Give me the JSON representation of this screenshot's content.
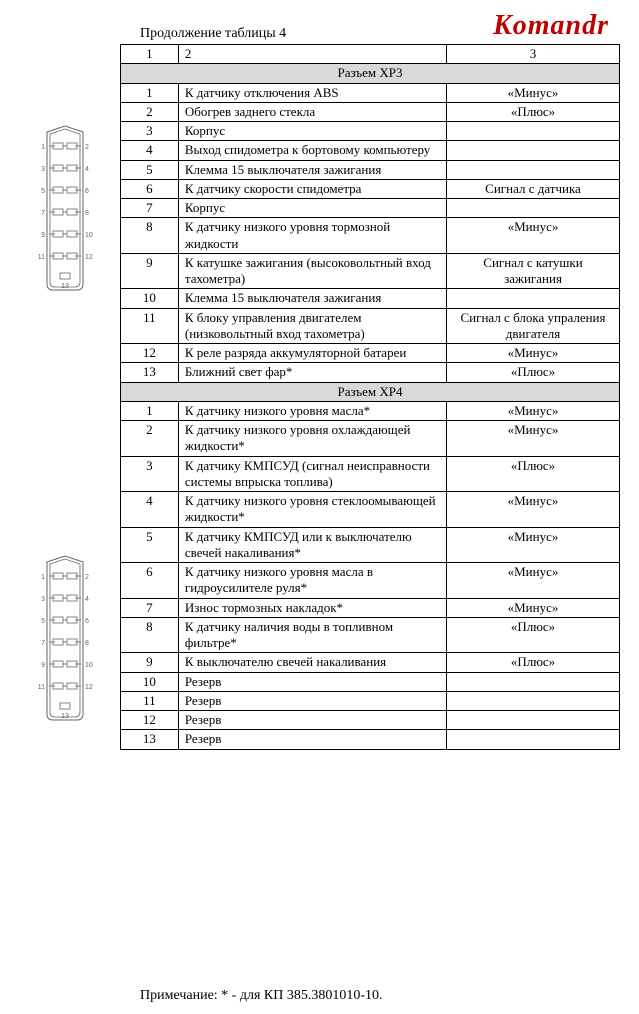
{
  "title": "Продолжение таблицы 4",
  "brand": "Komandr",
  "note": "Примечание: * - для КП 385.3801010-10.",
  "headers": {
    "c1": "1",
    "c2": "2",
    "c3": "3"
  },
  "sections": [
    {
      "label": "Разъем XP3",
      "rows": [
        {
          "n": "1",
          "desc": "К датчику отключения ABS",
          "sig": "«Минус»"
        },
        {
          "n": "2",
          "desc": "Обогрев заднего стекла",
          "sig": "«Плюс»"
        },
        {
          "n": "3",
          "desc": "Корпус",
          "sig": ""
        },
        {
          "n": "4",
          "desc": "Выход спидометра к бортовому компьютеру",
          "sig": ""
        },
        {
          "n": "5",
          "desc": "Клемма 15 выключателя зажигания",
          "sig": ""
        },
        {
          "n": "6",
          "desc": "К датчику скорости спидометра",
          "sig": "Сигнал с датчика"
        },
        {
          "n": "7",
          "desc": "Корпус",
          "sig": ""
        },
        {
          "n": "8",
          "desc": "К датчику низкого уровня тормозной жидкости",
          "sig": "«Минус»"
        },
        {
          "n": "9",
          "desc": "К катушке зажигания (высоковольтный вход тахометра)",
          "sig": "Сигнал с катушки зажигания"
        },
        {
          "n": "10",
          "desc": "Клемма 15 выключателя зажигания",
          "sig": ""
        },
        {
          "n": "11",
          "desc": "К блоку управления двигателем (низковольтный вход тахометра)",
          "sig": "Сигнал с блока упраления двигателя"
        },
        {
          "n": "12",
          "desc": "К реле разряда аккумуляторной батареи",
          "sig": "«Минус»"
        },
        {
          "n": "13",
          "desc": "Ближний свет фар*",
          "sig": "«Плюс»"
        }
      ]
    },
    {
      "label": "Разъем XP4",
      "rows": [
        {
          "n": "1",
          "desc": "К датчику низкого уровня масла*",
          "sig": "«Минус»"
        },
        {
          "n": "2",
          "desc": "К датчику низкого уровня охлаждающей жидкости*",
          "sig": "«Минус»"
        },
        {
          "n": "3",
          "desc": "К датчику КМПСУД (сигнал неисправности системы впрыска топлива)",
          "sig": "«Плюс»"
        },
        {
          "n": "4",
          "desc": "К датчику низкого уровня стеклоомывающей жидкости*",
          "sig": "«Минус»"
        },
        {
          "n": "5",
          "desc": "К датчику КМПСУД или к выключателю свечей накаливания*",
          "sig": "«Минус»"
        },
        {
          "n": "6",
          "desc": "К датчику низкого уровня масла в гидроусилителе руля*",
          "sig": "«Минус»"
        },
        {
          "n": "7",
          "desc": "Износ тормозных накладок*",
          "sig": "«Минус»"
        },
        {
          "n": "8",
          "desc": "К датчику наличия воды в топливном фильтре*",
          "sig": "«Плюс»"
        },
        {
          "n": "9",
          "desc": "К выключателю свечей накаливания",
          "sig": "«Плюс»"
        },
        {
          "n": "10",
          "desc": "Резерв",
          "sig": ""
        },
        {
          "n": "11",
          "desc": "Резерв",
          "sig": ""
        },
        {
          "n": "12",
          "desc": "Резерв",
          "sig": ""
        },
        {
          "n": "13",
          "desc": "Резерв",
          "sig": ""
        }
      ]
    }
  ],
  "connector": {
    "pin_labels_left": [
      "1",
      "3",
      "5",
      "7",
      "9",
      "11"
    ],
    "pin_labels_right": [
      "2",
      "4",
      "6",
      "8",
      "10",
      "12"
    ],
    "bottom_label": "13",
    "stroke": "#666666",
    "text_color": "#666666",
    "bg": "#ffffff"
  }
}
